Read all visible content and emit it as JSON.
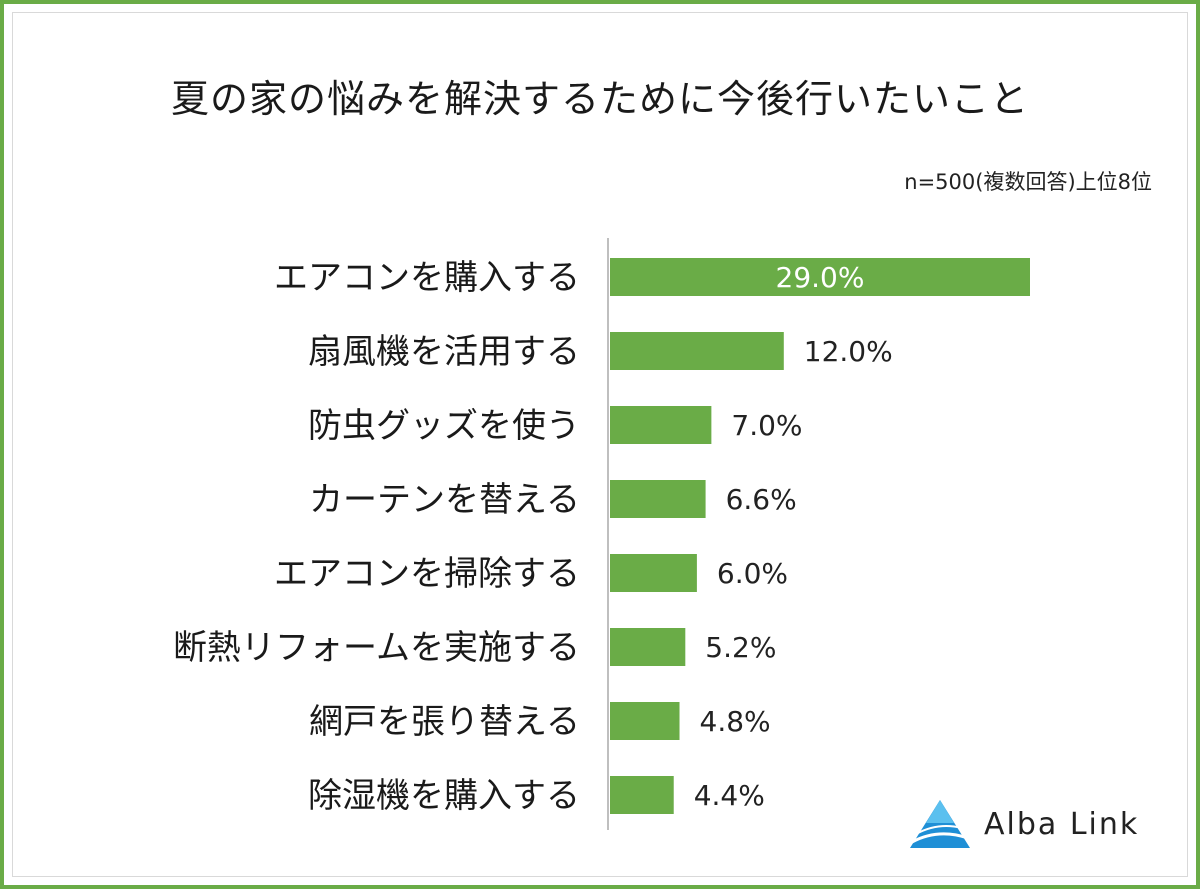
{
  "title": "夏の家の悩みを解決するために今後行いたいこと",
  "subtitle": "n=500(複数回答)上位8位",
  "logo": {
    "text": "Alba Link",
    "icon": "alba-link-logo-icon"
  },
  "colors": {
    "bar": "#6aac47",
    "frame": "#6aac47",
    "axis": "#bfbfbf",
    "label_inside": "#ffffff",
    "text": "#222222"
  },
  "chart_data": {
    "type": "bar",
    "orientation": "horizontal",
    "title": "夏の家の悩みを解決するために今後行いたいこと",
    "categories": [
      "エアコンを購入する",
      "扇風機を活用する",
      "防虫グッズを使う",
      "カーテンを替える",
      "エアコンを掃除する",
      "断熱リフォームを実施する",
      "網戸を張り替える",
      "除湿機を購入する"
    ],
    "values": [
      29.0,
      12.0,
      7.0,
      6.6,
      6.0,
      5.2,
      4.8,
      4.4
    ],
    "value_labels": [
      "29.0%",
      "12.0%",
      "7.0%",
      "6.6%",
      "6.0%",
      "5.2%",
      "4.8%",
      "4.4%"
    ],
    "unit": "%",
    "xlim": [
      0,
      40
    ],
    "grid": false,
    "legend": false
  }
}
